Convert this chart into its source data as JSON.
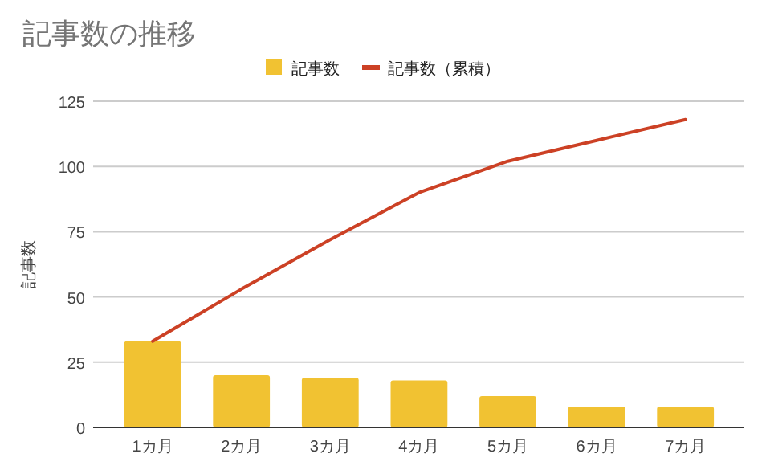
{
  "chart_data": {
    "type": "bar",
    "title": "記事数の推移",
    "ylabel": "記事数",
    "categories": [
      "1カ月",
      "2カ月",
      "3カ月",
      "4カ月",
      "5カ月",
      "6カ月",
      "7カ月"
    ],
    "series": [
      {
        "name": "記事数",
        "color": "#f1c232",
        "values": [
          33,
          20,
          19,
          18,
          12,
          8,
          8
        ]
      },
      {
        "name": "記事数（累積）",
        "type": "line",
        "color": "#cc4125",
        "values": [
          33,
          53,
          72,
          90,
          102,
          110,
          118
        ]
      }
    ],
    "ylim": [
      0,
      125
    ],
    "yticks": [
      0,
      25,
      50,
      75,
      100,
      125
    ],
    "grid": "y",
    "legend": "top"
  }
}
